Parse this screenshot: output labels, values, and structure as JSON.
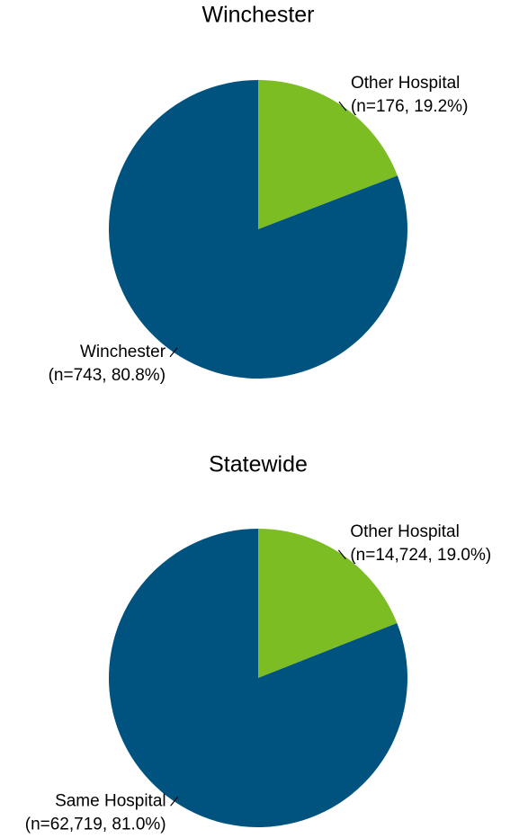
{
  "chart_data": [
    {
      "type": "pie",
      "title": "Winchester",
      "categories": [
        "Other Hospital",
        "Winchester"
      ],
      "values": [
        176,
        743
      ],
      "value_labels": [
        "(n=176, 19.2%)",
        "(n=743, 80.8%)"
      ],
      "colors": [
        "#7bbd23",
        "#00537e"
      ]
    },
    {
      "type": "pie",
      "title": "Statewide",
      "categories": [
        "Other Hospital",
        "Same Hospital"
      ],
      "values": [
        14724,
        62719
      ],
      "value_labels": [
        "(n=14,724, 19.0%)",
        "(n=62,719, 81.0%)"
      ],
      "colors": [
        "#7bbd23",
        "#00537e"
      ]
    }
  ]
}
